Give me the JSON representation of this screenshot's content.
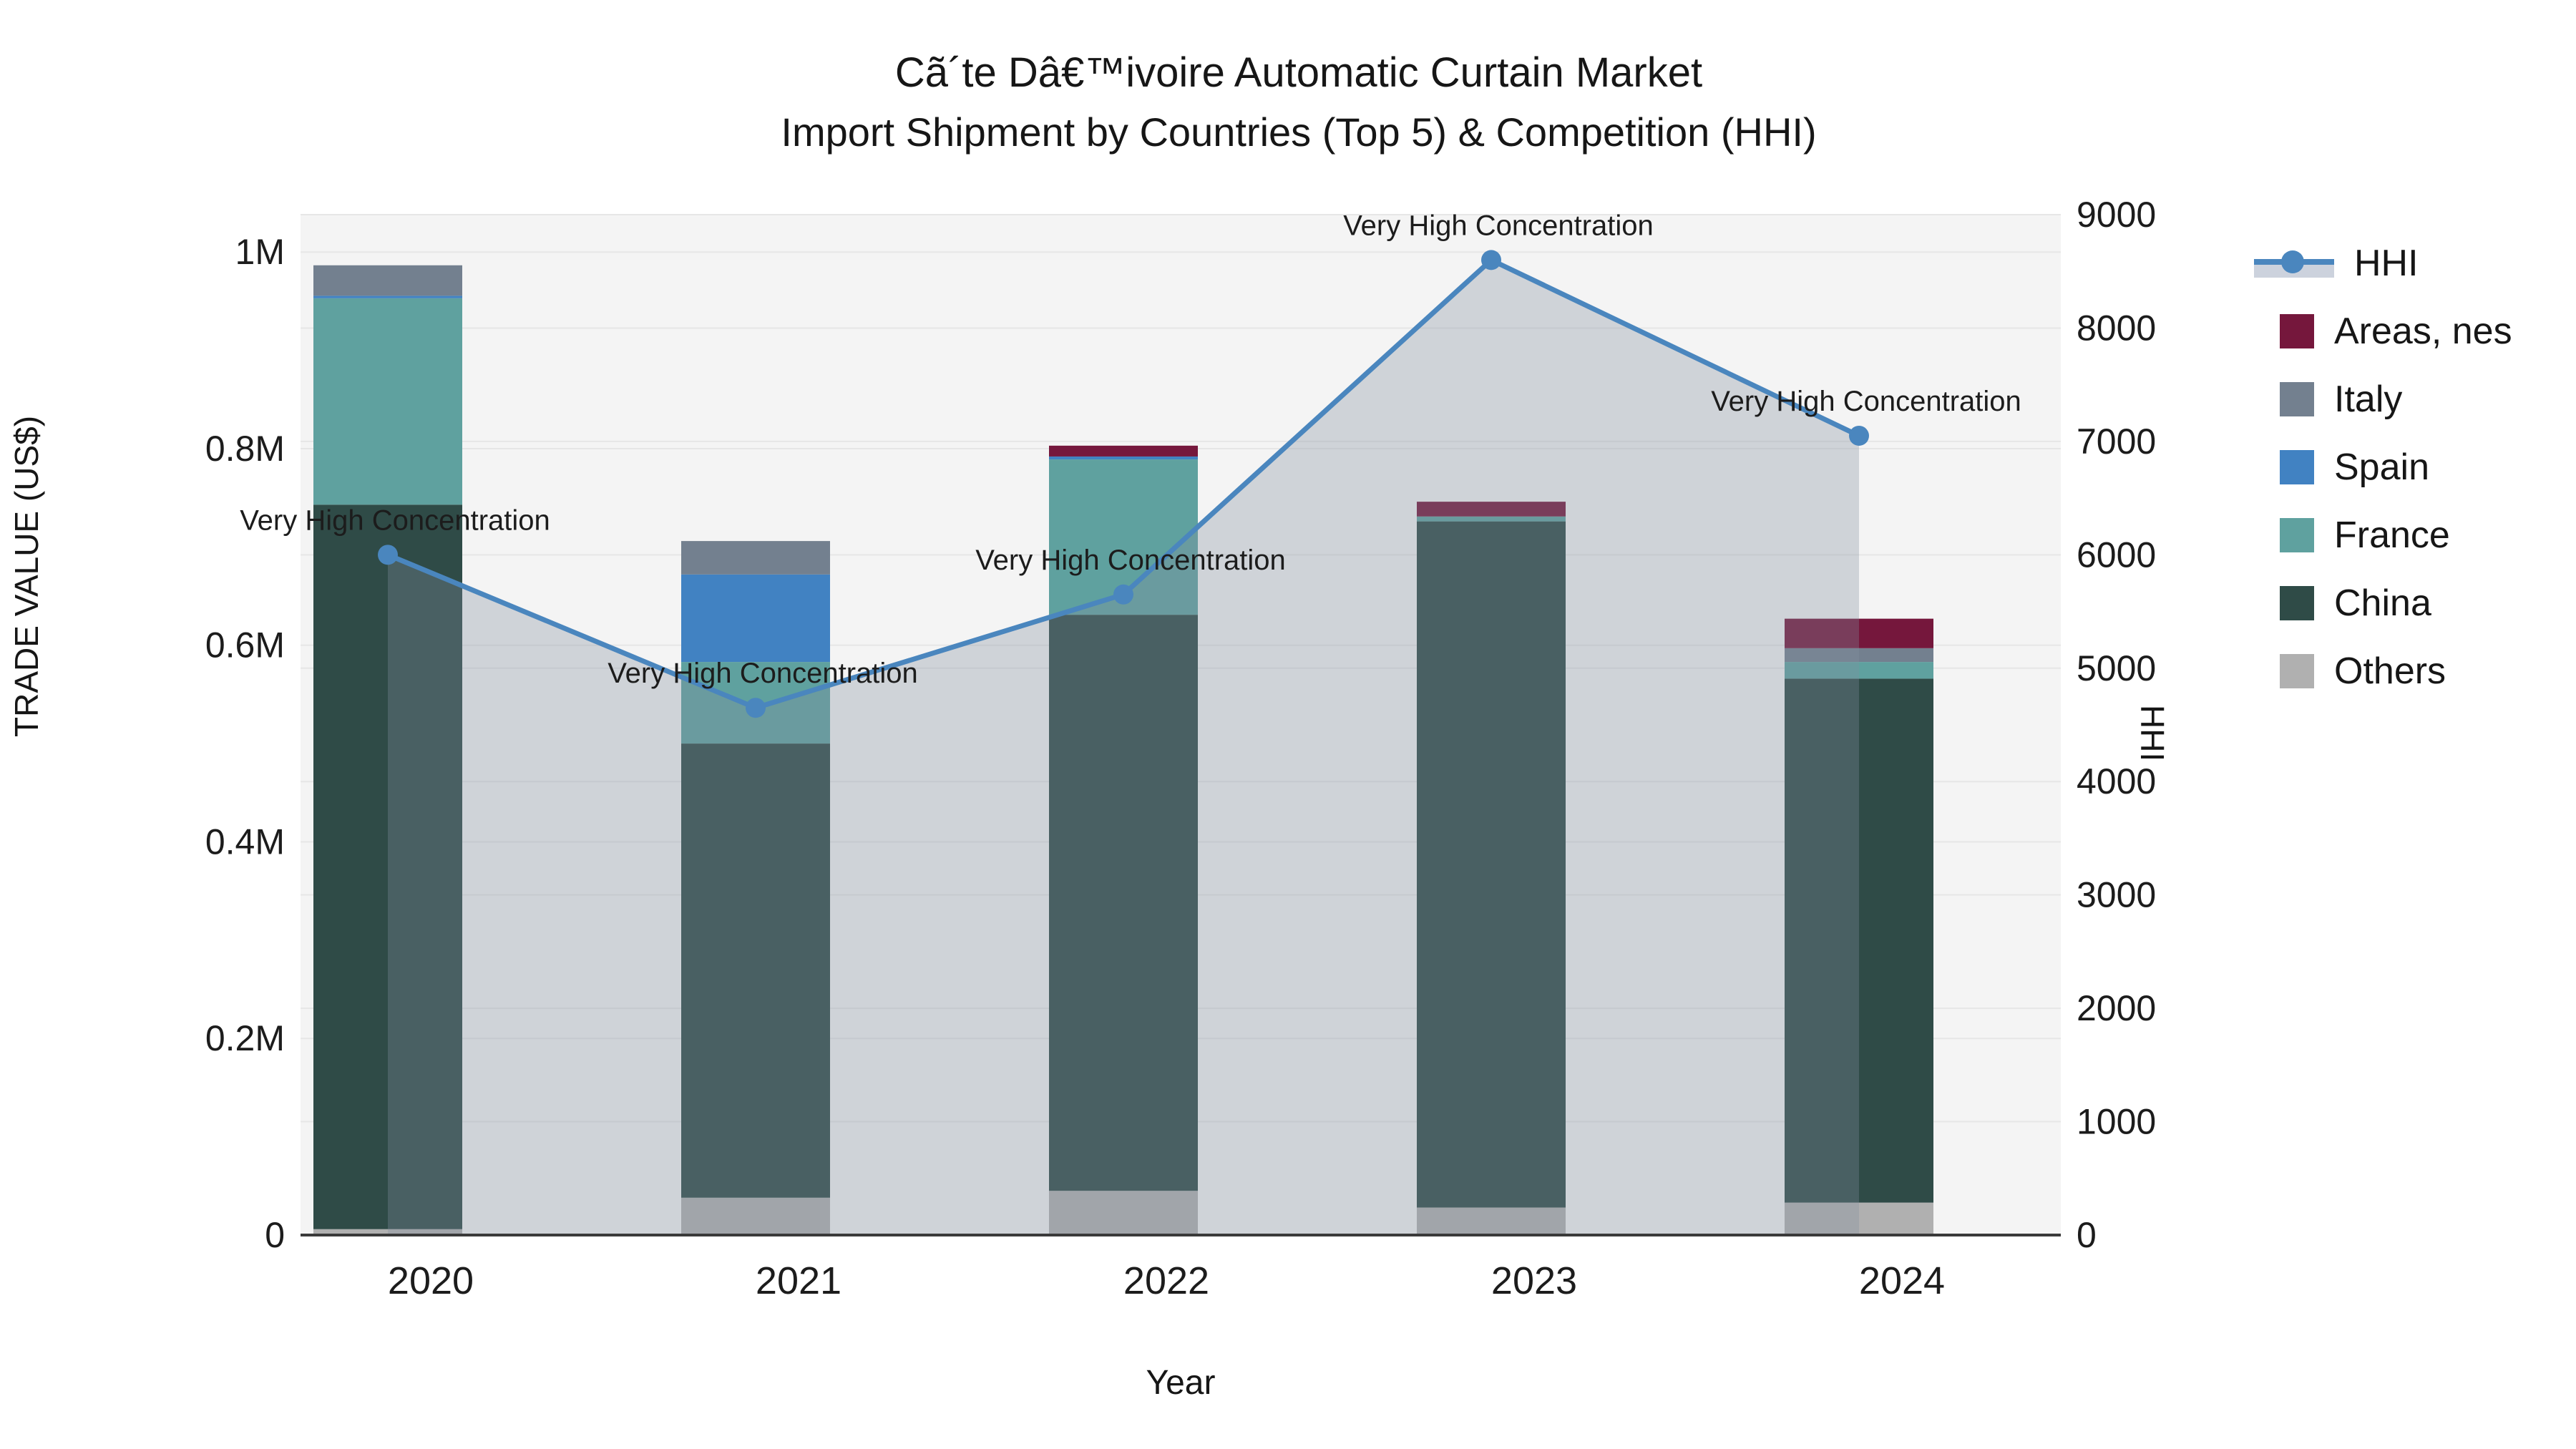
{
  "title": {
    "line1": "Cã´te Dâ€™ivoire Automatic Curtain Market",
    "line2": "Import Shipment by Countries (Top 5) & Competition (HHI)"
  },
  "axes": {
    "y_left_label": "TRADE VALUE (US$)",
    "y_right_label": "HHI",
    "x_label": "Year",
    "y_left_ticks": [
      "0",
      "0.2M",
      "0.4M",
      "0.6M",
      "0.8M",
      "1M"
    ],
    "y_left_tick_values": [
      0,
      200000,
      400000,
      600000,
      800000,
      1000000
    ],
    "y_right_ticks": [
      "0",
      "1000",
      "2000",
      "3000",
      "4000",
      "5000",
      "6000",
      "7000",
      "8000",
      "9000"
    ],
    "y_right_tick_values": [
      0,
      1000,
      2000,
      3000,
      4000,
      5000,
      6000,
      7000,
      8000,
      9000
    ]
  },
  "legend": {
    "items": [
      {
        "label": "HHI",
        "type": "line",
        "color": "#4a86be"
      },
      {
        "label": "Areas, nes",
        "type": "box",
        "color": "#75173c"
      },
      {
        "label": "Italy",
        "type": "box",
        "color": "#73808f"
      },
      {
        "label": "Spain",
        "type": "box",
        "color": "#4182c2"
      },
      {
        "label": "France",
        "type": "box",
        "color": "#5fa19f"
      },
      {
        "label": "China",
        "type": "box",
        "color": "#2f4b47"
      },
      {
        "label": "Others",
        "type": "box",
        "color": "#b0b0b0"
      }
    ]
  },
  "chart_data": {
    "type": "bar+line",
    "title": "Cã´te Dâ€™ivoire Automatic Curtain Market — Import Shipment by Countries (Top 5) & Competition (HHI)",
    "xlabel": "Year",
    "ylabel_left": "TRADE VALUE (US$)",
    "ylabel_right": "HHI",
    "categories": [
      "2020",
      "2021",
      "2022",
      "2023",
      "2024"
    ],
    "stack_order_bottom_to_top": [
      "Others",
      "China",
      "France",
      "Spain",
      "Italy",
      "Areas, nes"
    ],
    "series": [
      {
        "name": "Others",
        "color": "#b0b0b0",
        "values": [
          6000,
          38000,
          45000,
          28000,
          33000
        ]
      },
      {
        "name": "China",
        "color": "#2f4b47",
        "values": [
          737000,
          462000,
          586000,
          698000,
          533000
        ]
      },
      {
        "name": "France",
        "color": "#5fa19f",
        "values": [
          210000,
          83000,
          158000,
          5000,
          17000
        ]
      },
      {
        "name": "Spain",
        "color": "#4182c2",
        "values": [
          2500,
          89000,
          3000,
          0,
          0
        ]
      },
      {
        "name": "Italy",
        "color": "#73808f",
        "values": [
          31000,
          34000,
          0,
          0,
          14000
        ]
      },
      {
        "name": "Areas, nes",
        "color": "#75173c",
        "values": [
          0,
          0,
          11000,
          15000,
          30000
        ]
      }
    ],
    "bar_totals": [
      986500,
      706000,
      803000,
      746000,
      627000
    ],
    "hhi": {
      "name": "HHI",
      "color": "#4a86be",
      "area_fill_color": "rgba(130,142,160,0.32)",
      "values": [
        6000,
        4650,
        5650,
        8600,
        7050
      ],
      "annotations": [
        "Very High Concentration",
        "Very High Concentration",
        "Very High Concentration",
        "Very High Concentration",
        "Very High Concentration"
      ]
    },
    "ylim_left": [
      0,
      1038000
    ],
    "ylim_right": [
      0,
      9000
    ],
    "grid": true,
    "legend_position": "right"
  },
  "colors": {
    "plot_bg": "#f4f4f4",
    "grid": "#e6e6e6",
    "axis_line": "#3a3a3a",
    "text": "#1c1c1c"
  }
}
